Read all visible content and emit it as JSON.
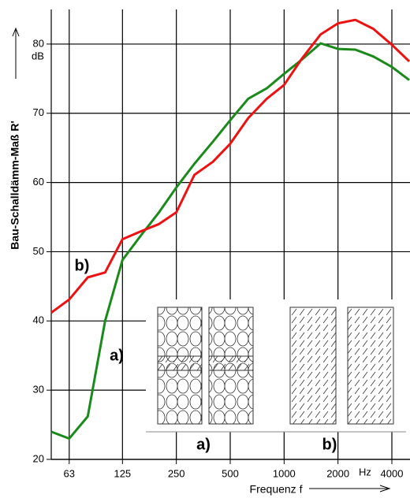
{
  "chart_data": {
    "type": "line",
    "x_label": "Frequenz f",
    "x_unit": "Hz",
    "y_label": "Bau-Schalldämm-Maß R'",
    "y_unit": "dB",
    "x": [
      50,
      63,
      80,
      100,
      125,
      160,
      200,
      250,
      315,
      400,
      500,
      630,
      800,
      1000,
      1250,
      1600,
      2000,
      2500,
      3150,
      4000,
      5000
    ],
    "series": [
      {
        "name": "a)",
        "color": "#1a8a1a",
        "values": [
          24,
          23,
          26.2,
          40,
          48.8,
          52.5,
          55.7,
          59.3,
          62.7,
          65.9,
          69,
          72.1,
          73.6,
          75.7,
          77.7,
          80.1,
          79.3,
          79.2,
          78.2,
          76.7,
          74.8
        ]
      },
      {
        "name": "b)",
        "color": "#ee1111",
        "values": [
          41.2,
          43.1,
          46.3,
          47,
          51.8,
          53,
          54,
          55.7,
          61.1,
          63,
          65.6,
          69.3,
          72.1,
          74.1,
          77.8,
          81.4,
          83,
          83.5,
          82.2,
          79.9,
          77.5
        ]
      }
    ],
    "xlim": [
      50,
      5000
    ],
    "xscale": "log",
    "xticks": [
      63,
      125,
      250,
      500,
      1000,
      2000,
      4000
    ],
    "ylim": [
      20,
      85
    ],
    "yticks": [
      20,
      30,
      40,
      50,
      60,
      70,
      80
    ],
    "grid": true,
    "inset": {
      "labels": [
        "a)",
        "b)"
      ]
    }
  }
}
